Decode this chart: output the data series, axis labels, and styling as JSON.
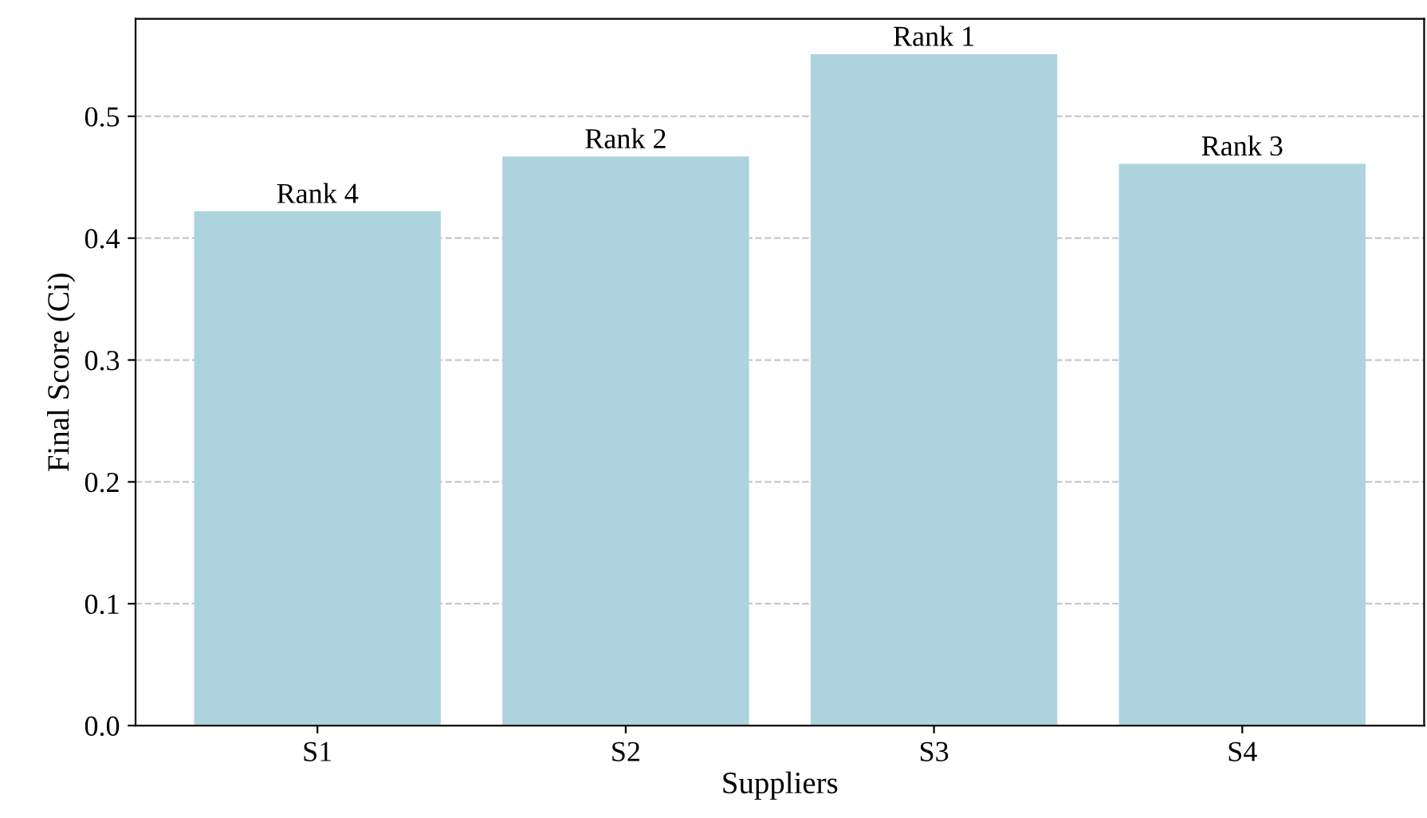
{
  "chart_data": {
    "type": "bar",
    "xlabel": "Suppliers",
    "ylabel": "Final Score (Ci)",
    "categories": [
      "S1",
      "S2",
      "S3",
      "S4"
    ],
    "values": [
      0.422,
      0.467,
      0.551,
      0.461
    ],
    "color": "#add3df",
    "ylim": [
      0,
      0.58
    ],
    "yticks": [
      {
        "value": 0,
        "label": "0.0"
      },
      0.1,
      0.2,
      0.3,
      0.4,
      0.5
    ],
    "grid": "y",
    "annotations": [
      {
        "text": "Rank 4",
        "x": "S1",
        "y": 0.422
      },
      {
        "text": "Rank 2",
        "x": "S2",
        "y": 0.467
      },
      {
        "text": "Rank 1",
        "x": "S3",
        "y": 0.551
      },
      {
        "text": "Rank 3",
        "x": "S4",
        "y": 0.461
      }
    ]
  }
}
